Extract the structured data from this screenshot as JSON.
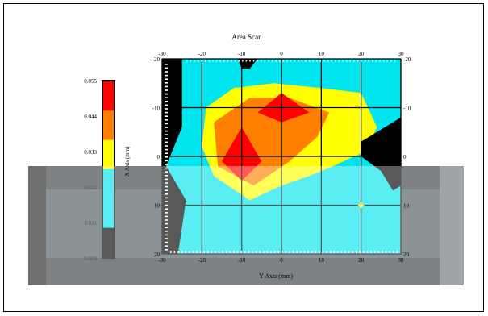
{
  "chart_data": {
    "type": "heatmap",
    "title": "Area Scan",
    "xlabel": "Y Axis (mm)",
    "ylabel": "X Axis (mm)",
    "x_range": [
      -30,
      30
    ],
    "y_range": [
      -20,
      20
    ],
    "x_ticks": [
      "-30",
      "-20",
      "-10",
      "0",
      "10",
      "20",
      "30"
    ],
    "y_ticks": [
      "-20",
      "-10",
      "0",
      "10",
      "20"
    ],
    "grid": true,
    "legend_placement": "left",
    "colorbar": {
      "labels": [
        "0.055",
        "0.044",
        "0.033",
        "0.022",
        "0.011",
        "0.000"
      ],
      "colors": [
        "#ff0000",
        "#ff8000",
        "#ffff00",
        "#00e5ee",
        "#00e5ee",
        "#000000"
      ]
    },
    "contour_levels": [
      {
        "level": 0.011,
        "color": "#00e5ee",
        "points": [
          [
            -27,
            -20
          ],
          [
            30,
            -20
          ],
          [
            30,
            20
          ],
          [
            -27,
            20
          ]
        ]
      },
      {
        "level": 0.022,
        "color": "#ffff00",
        "points": [
          [
            -19,
            -10
          ],
          [
            -12,
            -14
          ],
          [
            -2,
            -15
          ],
          [
            10,
            -14
          ],
          [
            20,
            -13
          ],
          [
            24,
            -6
          ],
          [
            21,
            -1
          ],
          [
            13,
            2
          ],
          [
            7,
            4
          ],
          [
            0,
            6
          ],
          [
            -8,
            9
          ],
          [
            -17,
            4
          ],
          [
            -20,
            -2
          ]
        ]
      },
      {
        "level": 0.033,
        "color": "#ff8000",
        "points": [
          [
            -17,
            -7
          ],
          [
            -8,
            -12
          ],
          [
            2,
            -12
          ],
          [
            12,
            -9
          ],
          [
            9,
            -4
          ],
          [
            2,
            1
          ],
          [
            -7,
            6
          ],
          [
            -16,
            2
          ]
        ]
      },
      {
        "level": 0.044,
        "color": "#ff0000",
        "points": [
          [
            -15,
            1
          ],
          [
            -10,
            -6
          ],
          [
            -5,
            1
          ],
          [
            -10,
            5
          ]
        ]
      },
      {
        "level": 0.044,
        "color": "#ff0000",
        "points": [
          [
            -6,
            -9
          ],
          [
            0,
            -13
          ],
          [
            7,
            -9
          ],
          [
            0,
            -7
          ]
        ]
      }
    ],
    "zero_regions": [
      {
        "points": [
          [
            -30,
            -20
          ],
          [
            -25,
            -20
          ],
          [
            -25,
            -6
          ],
          [
            -29,
            2
          ],
          [
            -24,
            9
          ],
          [
            -26,
            20
          ],
          [
            -30,
            20
          ]
        ]
      },
      {
        "points": [
          [
            28,
            -7
          ],
          [
            30,
            -8
          ],
          [
            30,
            6
          ],
          [
            28,
            7
          ],
          [
            25,
            3
          ],
          [
            20,
            0
          ],
          [
            20,
            -3
          ]
        ]
      },
      {
        "points": [
          [
            -11,
            -20
          ],
          [
            -6,
            -20
          ],
          [
            -8,
            -18
          ],
          [
            -10,
            -18
          ]
        ]
      }
    ],
    "annotations": [
      {
        "type": "marker",
        "x": 20,
        "y": 10,
        "color": "#ffd700"
      }
    ]
  }
}
